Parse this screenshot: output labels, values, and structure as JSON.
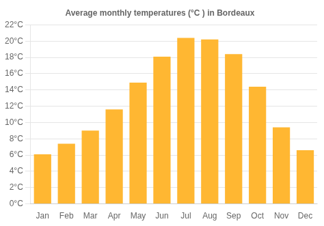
{
  "chart_data": {
    "type": "bar",
    "title": "Average monthly temperatures (°C ) in Bordeaux",
    "categories": [
      "Jan",
      "Feb",
      "Mar",
      "Apr",
      "May",
      "Jun",
      "Jul",
      "Aug",
      "Sep",
      "Oct",
      "Nov",
      "Dec"
    ],
    "values": [
      6.1,
      7.4,
      9.0,
      11.6,
      14.9,
      18.1,
      20.4,
      20.2,
      18.4,
      14.4,
      9.4,
      6.6
    ],
    "color": "#FFB732",
    "ylim": [
      0,
      22
    ],
    "yticks": [
      {
        "value": 0,
        "label": "0°C"
      },
      {
        "value": 2,
        "label": "2°C"
      },
      {
        "value": 4,
        "label": "4°C"
      },
      {
        "value": 6,
        "label": "6°C"
      },
      {
        "value": 8,
        "label": "8°C"
      },
      {
        "value": 10,
        "label": "10°C"
      },
      {
        "value": 12,
        "label": "12°C"
      },
      {
        "value": 14,
        "label": "14°C"
      },
      {
        "value": 16,
        "label": "16°C"
      },
      {
        "value": 18,
        "label": "18°C"
      },
      {
        "value": 20,
        "label": "20°C"
      },
      {
        "value": 22,
        "label": "22°C"
      }
    ],
    "grid": true
  }
}
